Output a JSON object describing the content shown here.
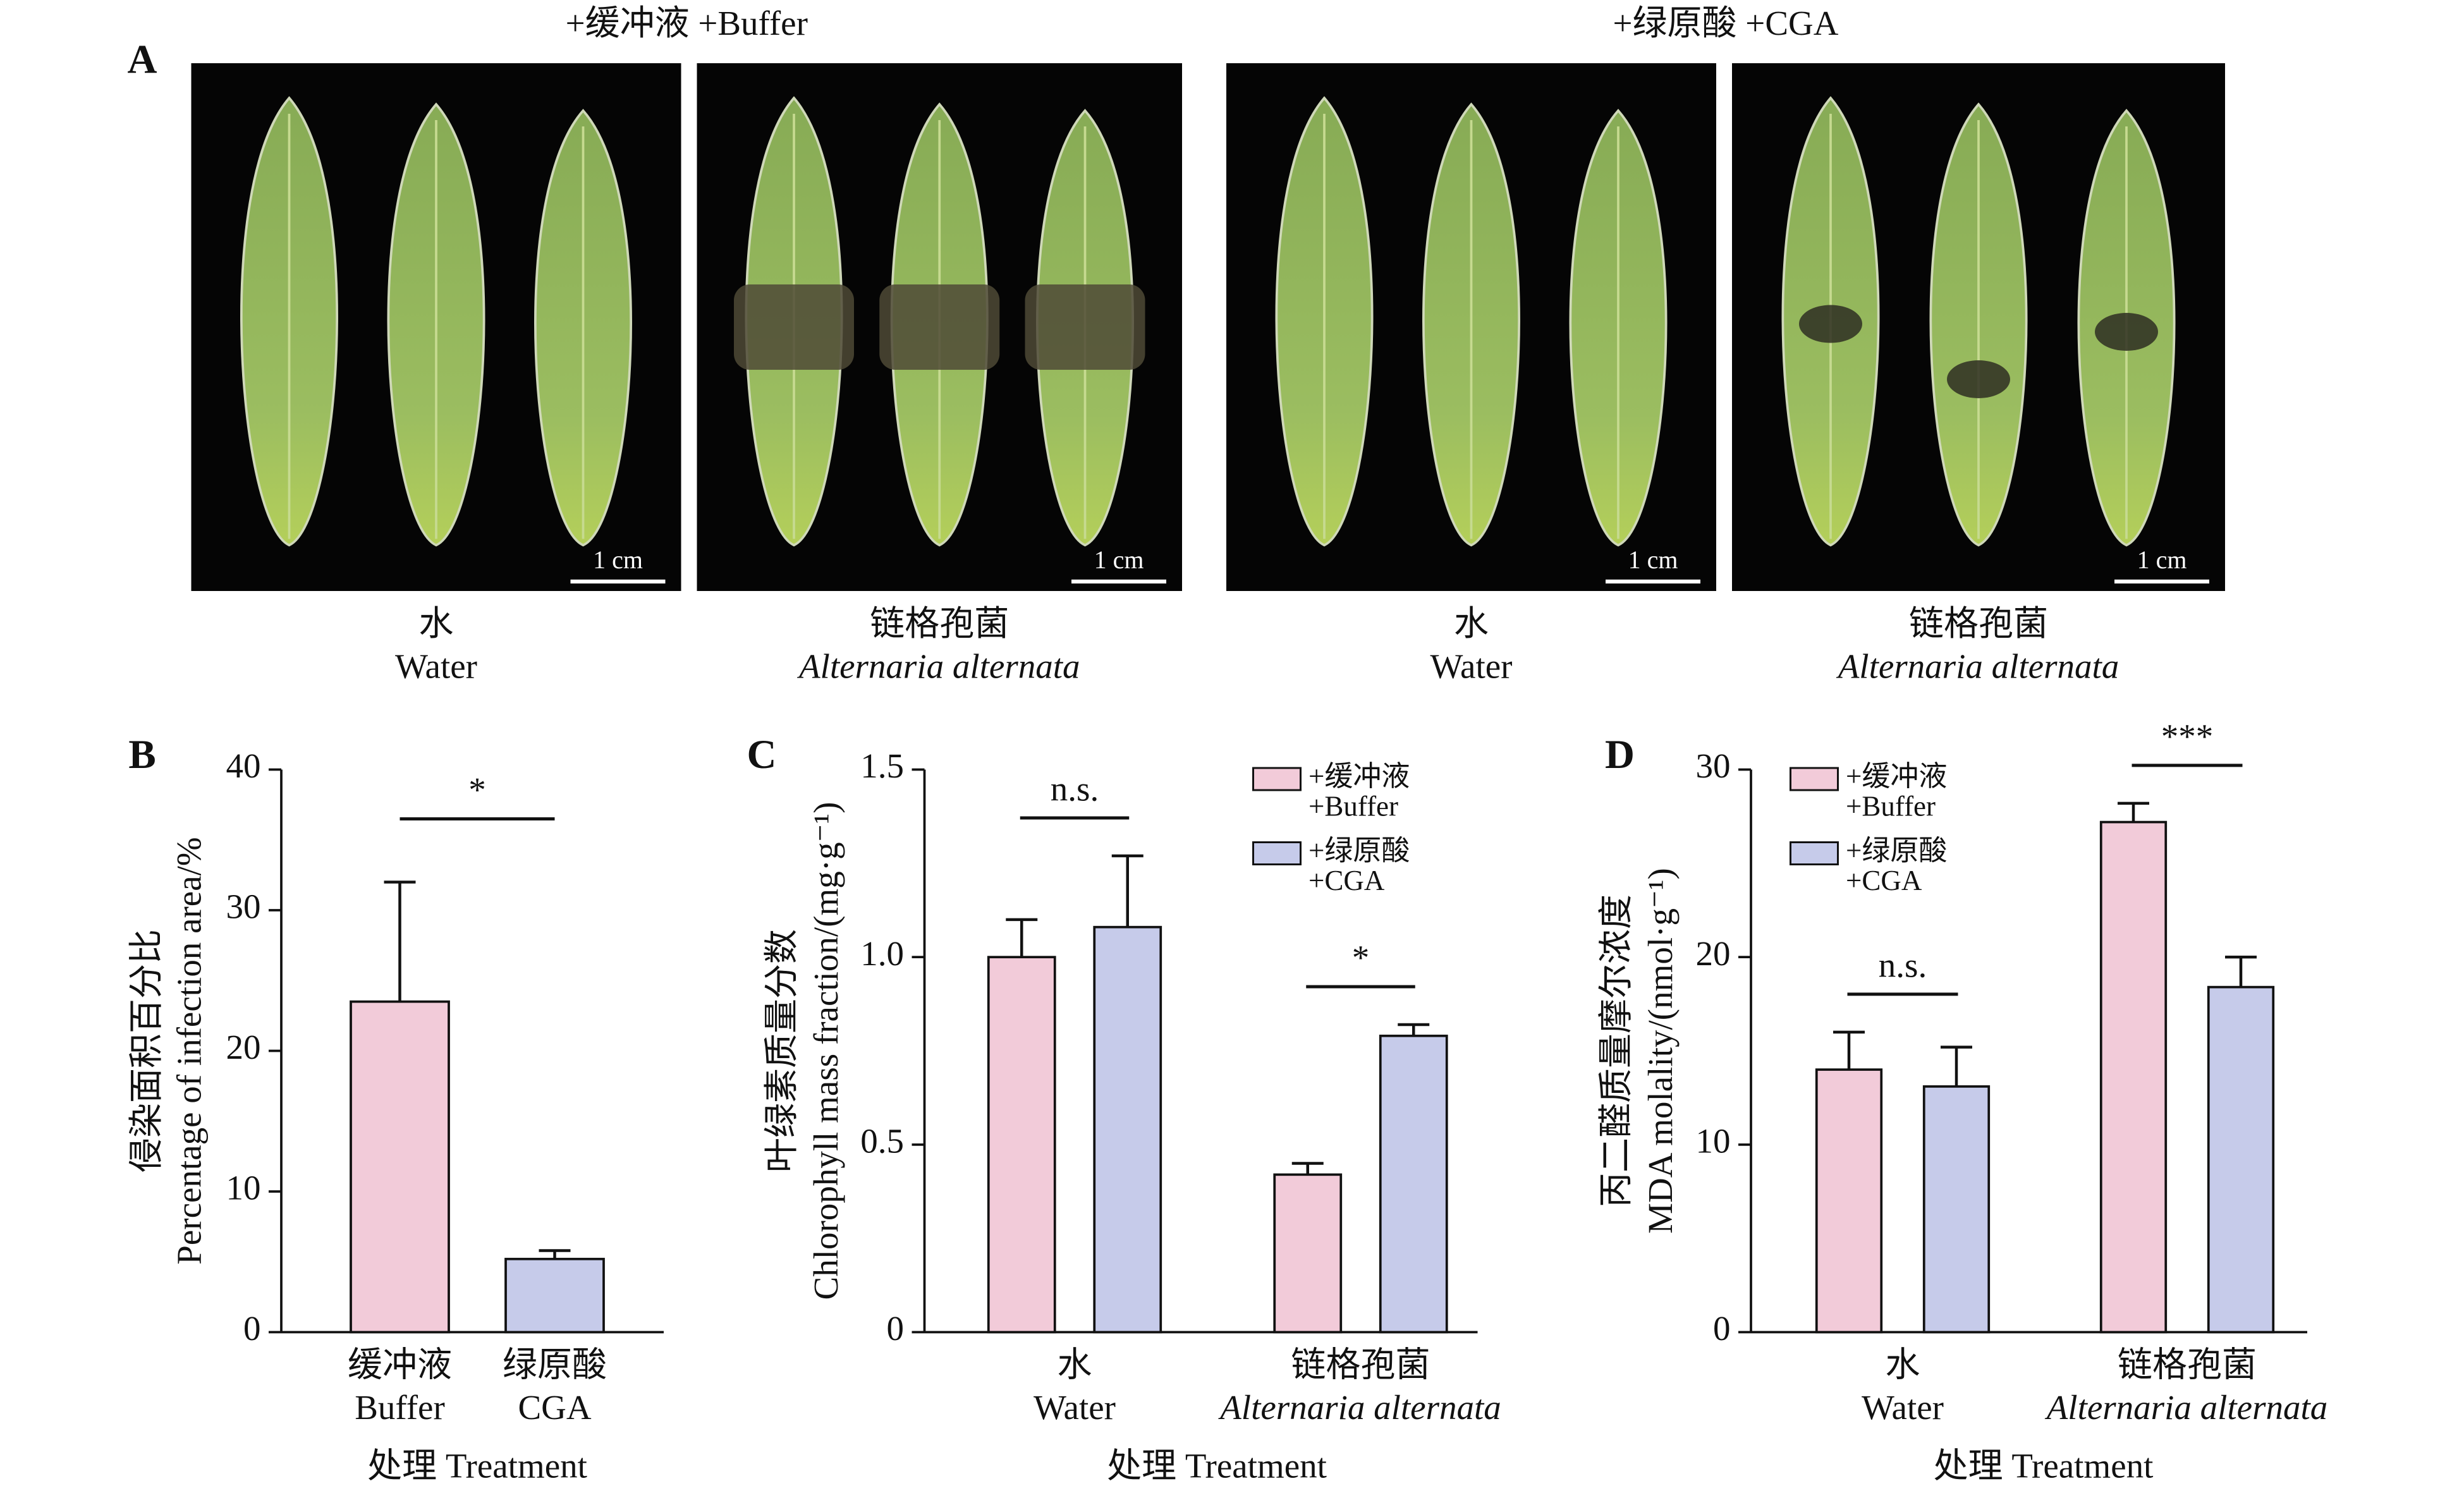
{
  "panel_a": {
    "label": "A",
    "groups": [
      {
        "title": "+缓冲液 +Buffer",
        "photos": [
          {
            "caption": [
              "水",
              "Water"
            ],
            "scale": "1 cm"
          },
          {
            "caption": [
              "链格孢菌",
              "Alternaria alternata"
            ],
            "scale": "1 cm"
          }
        ]
      },
      {
        "title": "+绿原酸 +CGA",
        "photos": [
          {
            "caption": [
              "水",
              "Water"
            ],
            "scale": "1 cm"
          },
          {
            "caption": [
              "链格孢菌",
              "Alternaria alternata"
            ],
            "scale": "1 cm"
          }
        ]
      }
    ]
  },
  "chart_data": [
    {
      "type": "bar",
      "panel": "B",
      "categories": [
        [
          "缓冲液",
          "Buffer"
        ],
        [
          "绿原酸",
          "CGA"
        ]
      ],
      "values": [
        23.5,
        5.2
      ],
      "errors": [
        8.5,
        0.6
      ],
      "colors": [
        "#f2cbd9",
        "#c6cbea"
      ],
      "ylim": [
        0,
        40
      ],
      "yticks": [
        0,
        10,
        20,
        30,
        40
      ],
      "y_label": [
        "侵染面积百分比",
        "Percentage of infection area/%"
      ],
      "x_label": "处理 Treatment",
      "significance": "*"
    },
    {
      "type": "grouped-bar",
      "panel": "C",
      "categories": [
        [
          "水",
          "Water"
        ],
        [
          "链格孢菌",
          "Alternaria alternata"
        ]
      ],
      "series": [
        {
          "name": [
            "+缓冲液",
            "+Buffer"
          ],
          "color": "#f2cbd9",
          "values": [
            1.0,
            0.42
          ],
          "errors": [
            0.1,
            0.03
          ]
        },
        {
          "name": [
            "+绿原酸",
            "+CGA"
          ],
          "color": "#c6cbea",
          "values": [
            1.08,
            0.79
          ],
          "errors": [
            0.19,
            0.03
          ]
        }
      ],
      "ylim": [
        0,
        1.5
      ],
      "yticks": [
        0,
        0.5,
        {
          "value": 1,
          "label": "1.0"
        },
        1.5
      ],
      "y_label": [
        "叶绿素质量分数",
        "Chlorophyll mass fraction/(mg·g⁻¹)"
      ],
      "x_label": "处理 Treatment",
      "significance": [
        "n.s.",
        "*"
      ]
    },
    {
      "type": "grouped-bar",
      "panel": "D",
      "categories": [
        [
          "水",
          "Water"
        ],
        [
          "链格孢菌",
          "Alternaria alternata"
        ]
      ],
      "series": [
        {
          "name": [
            "+缓冲液",
            "+Buffer"
          ],
          "color": "#f2cbd9",
          "values": [
            14.0,
            27.2
          ],
          "errors": [
            2.0,
            1.0
          ]
        },
        {
          "name": [
            "+绿原酸",
            "+CGA"
          ],
          "color": "#c6cbea",
          "values": [
            13.1,
            18.4
          ],
          "errors": [
            2.1,
            1.6
          ]
        }
      ],
      "ylim": [
        0,
        30
      ],
      "yticks": [
        0,
        10,
        20,
        30
      ],
      "y_label": [
        "丙二醛质量摩尔浓度",
        "MDA molality/(nmol·g⁻¹)"
      ],
      "x_label": "处理 Treatment",
      "significance": [
        "n.s.",
        "***"
      ]
    }
  ]
}
